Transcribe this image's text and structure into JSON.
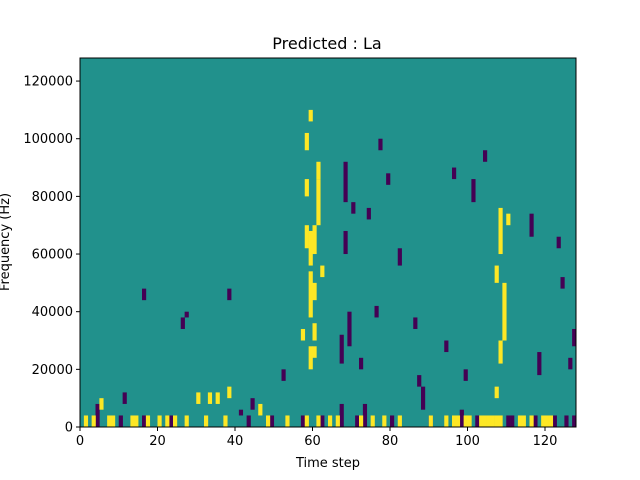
{
  "chart_data": {
    "type": "heatmap",
    "title": "Predicted : La",
    "xlabel": "Time step",
    "ylabel": "Frequency (Hz)",
    "xlim": [
      0,
      128
    ],
    "ylim": [
      0,
      128000
    ],
    "x_ticks": [
      0,
      20,
      40,
      60,
      80,
      100,
      120
    ],
    "y_ticks": [
      0,
      20000,
      40000,
      60000,
      80000,
      100000,
      120000
    ],
    "x_tick_labels": [
      "0",
      "20",
      "40",
      "60",
      "80",
      "100",
      "120"
    ],
    "y_tick_labels": [
      "0",
      "20000",
      "40000",
      "60000",
      "80000",
      "100000",
      "120000"
    ],
    "grid": false,
    "colors": {
      "background": "#21918c",
      "low": "#440154",
      "high": "#fde725",
      "axes": "#000000"
    },
    "cell_height_hz": 2000,
    "low_value_cells": [
      [
        4,
        0,
        8000
      ],
      [
        10,
        0,
        4000
      ],
      [
        11,
        8000,
        4000
      ],
      [
        16,
        0,
        4000
      ],
      [
        16,
        44000,
        4000
      ],
      [
        23,
        0,
        4000
      ],
      [
        26,
        34000,
        4000
      ],
      [
        27,
        38000,
        2000
      ],
      [
        38,
        44000,
        4000
      ],
      [
        41,
        4000,
        2000
      ],
      [
        43,
        0,
        4000
      ],
      [
        44,
        6000,
        4000
      ],
      [
        49,
        0,
        4000
      ],
      [
        52,
        16000,
        4000
      ],
      [
        57,
        0,
        4000
      ],
      [
        62,
        0,
        4000
      ],
      [
        67,
        0,
        8000
      ],
      [
        67,
        22000,
        10000
      ],
      [
        68,
        60000,
        8000
      ],
      [
        68,
        78000,
        14000
      ],
      [
        69,
        28000,
        12000
      ],
      [
        70,
        74000,
        4000
      ],
      [
        71,
        0,
        4000
      ],
      [
        72,
        20000,
        4000
      ],
      [
        73,
        0,
        8000
      ],
      [
        74,
        72000,
        4000
      ],
      [
        76,
        38000,
        4000
      ],
      [
        77,
        96000,
        4000
      ],
      [
        79,
        84000,
        4000
      ],
      [
        80,
        0,
        4000
      ],
      [
        82,
        56000,
        6000
      ],
      [
        86,
        34000,
        4000
      ],
      [
        87,
        14000,
        4000
      ],
      [
        88,
        6000,
        8000
      ],
      [
        90,
        0,
        4000
      ],
      [
        94,
        26000,
        4000
      ],
      [
        96,
        86000,
        4000
      ],
      [
        98,
        0,
        6000
      ],
      [
        99,
        16000,
        4000
      ],
      [
        101,
        78000,
        8000
      ],
      [
        102,
        0,
        4000
      ],
      [
        104,
        92000,
        4000
      ],
      [
        110,
        0,
        4000
      ],
      [
        111,
        0,
        4000
      ],
      [
        116,
        66000,
        8000
      ],
      [
        117,
        0,
        4000
      ],
      [
        118,
        18000,
        8000
      ],
      [
        122,
        0,
        4000
      ],
      [
        123,
        62000,
        4000
      ],
      [
        124,
        48000,
        4000
      ],
      [
        125,
        0,
        4000
      ],
      [
        126,
        20000,
        4000
      ],
      [
        127,
        28000,
        6000
      ],
      [
        127,
        0,
        4000
      ]
    ],
    "high_value_cells": [
      [
        1,
        0,
        4000
      ],
      [
        3,
        0,
        4000
      ],
      [
        5,
        6000,
        4000
      ],
      [
        7,
        0,
        4000
      ],
      [
        8,
        0,
        4000
      ],
      [
        13,
        0,
        4000
      ],
      [
        14,
        0,
        4000
      ],
      [
        17,
        0,
        4000
      ],
      [
        20,
        0,
        4000
      ],
      [
        22,
        0,
        4000
      ],
      [
        24,
        0,
        4000
      ],
      [
        27,
        0,
        4000
      ],
      [
        30,
        8000,
        4000
      ],
      [
        32,
        0,
        4000
      ],
      [
        33,
        8000,
        4000
      ],
      [
        35,
        8000,
        4000
      ],
      [
        37,
        0,
        4000
      ],
      [
        38,
        10000,
        4000
      ],
      [
        46,
        4000,
        4000
      ],
      [
        48,
        0,
        4000
      ],
      [
        53,
        0,
        4000
      ],
      [
        58,
        0,
        4000
      ],
      [
        59,
        20000,
        8000
      ],
      [
        61,
        0,
        4000
      ],
      [
        64,
        0,
        4000
      ],
      [
        66,
        0,
        4000
      ],
      [
        72,
        0,
        4000
      ],
      [
        75,
        0,
        4000
      ],
      [
        78,
        0,
        4000
      ],
      [
        82,
        0,
        4000
      ],
      [
        90,
        0,
        4000
      ],
      [
        94,
        0,
        4000
      ],
      [
        96,
        0,
        4000
      ],
      [
        97,
        0,
        4000
      ],
      [
        99,
        0,
        4000
      ],
      [
        100,
        0,
        4000
      ],
      [
        103,
        0,
        4000
      ],
      [
        104,
        0,
        4000
      ],
      [
        105,
        0,
        4000
      ],
      [
        106,
        0,
        4000
      ],
      [
        107,
        0,
        4000
      ],
      [
        108,
        0,
        4000
      ],
      [
        113,
        0,
        4000
      ],
      [
        114,
        0,
        4000
      ],
      [
        116,
        0,
        4000
      ],
      [
        119,
        0,
        4000
      ],
      [
        120,
        0,
        4000
      ],
      [
        121,
        0,
        4000
      ],
      [
        59,
        38000,
        16000
      ],
      [
        59,
        56000,
        12000
      ],
      [
        60,
        30000,
        6000
      ],
      [
        60,
        44000,
        6000
      ],
      [
        60,
        60000,
        10000
      ],
      [
        61,
        70000,
        16000
      ],
      [
        61,
        86000,
        6000
      ],
      [
        58,
        96000,
        6000
      ],
      [
        58,
        62000,
        8000
      ],
      [
        58,
        80000,
        6000
      ],
      [
        62,
        52000,
        4000
      ],
      [
        60,
        24000,
        4000
      ],
      [
        57,
        30000,
        4000
      ],
      [
        59,
        106000,
        4000
      ],
      [
        108,
        60000,
        16000
      ],
      [
        109,
        30000,
        20000
      ],
      [
        110,
        70000,
        4000
      ],
      [
        107,
        50000,
        6000
      ],
      [
        108,
        22000,
        8000
      ],
      [
        107,
        10000,
        4000
      ]
    ]
  }
}
